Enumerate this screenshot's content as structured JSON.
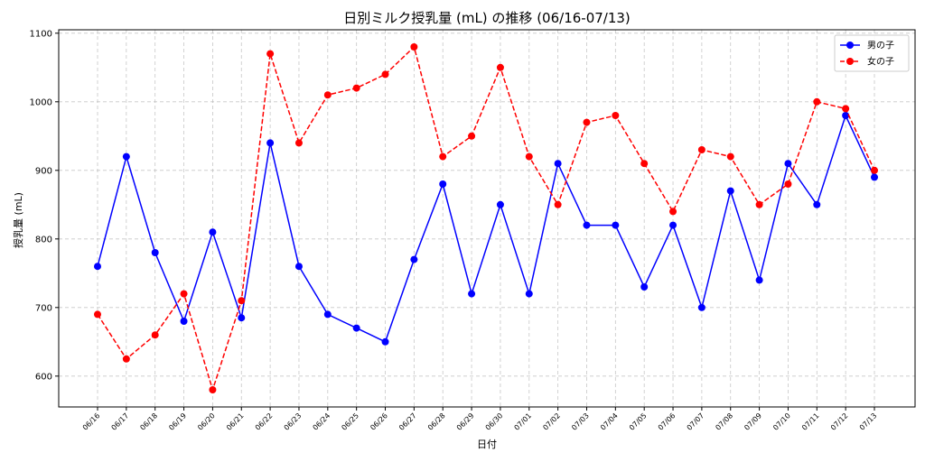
{
  "chart_data": {
    "type": "line",
    "title": "日別ミルク授乳量 (mL) の推移 (06/16-07/13)",
    "xlabel": "日付",
    "ylabel": "授乳量 (mL)",
    "categories": [
      "06/16",
      "06/17",
      "06/18",
      "06/19",
      "06/20",
      "06/21",
      "06/22",
      "06/23",
      "06/24",
      "06/25",
      "06/26",
      "06/27",
      "06/28",
      "06/29",
      "06/30",
      "07/01",
      "07/02",
      "07/03",
      "07/04",
      "07/05",
      "07/06",
      "07/07",
      "07/08",
      "07/09",
      "07/10",
      "07/11",
      "07/12",
      "07/13"
    ],
    "ylim": [
      555,
      1105
    ],
    "yticks": [
      600,
      700,
      800,
      900,
      1000,
      1100
    ],
    "grid": true,
    "legend_position": "top-right",
    "series": [
      {
        "name": "男の子",
        "color": "#0000ff",
        "line_style": "solid",
        "marker": "circle",
        "values": [
          760,
          920,
          780,
          680,
          810,
          685,
          940,
          760,
          690,
          670,
          650,
          770,
          880,
          720,
          850,
          720,
          910,
          820,
          820,
          730,
          820,
          700,
          870,
          740,
          910,
          850,
          980,
          890
        ]
      },
      {
        "name": "女の子",
        "color": "#ff0000",
        "line_style": "dashed",
        "marker": "circle",
        "values": [
          690,
          625,
          660,
          720,
          580,
          710,
          1070,
          940,
          1010,
          1020,
          1040,
          1080,
          920,
          950,
          1050,
          920,
          850,
          970,
          980,
          910,
          840,
          930,
          920,
          850,
          880,
          1000,
          990,
          900
        ]
      }
    ]
  }
}
